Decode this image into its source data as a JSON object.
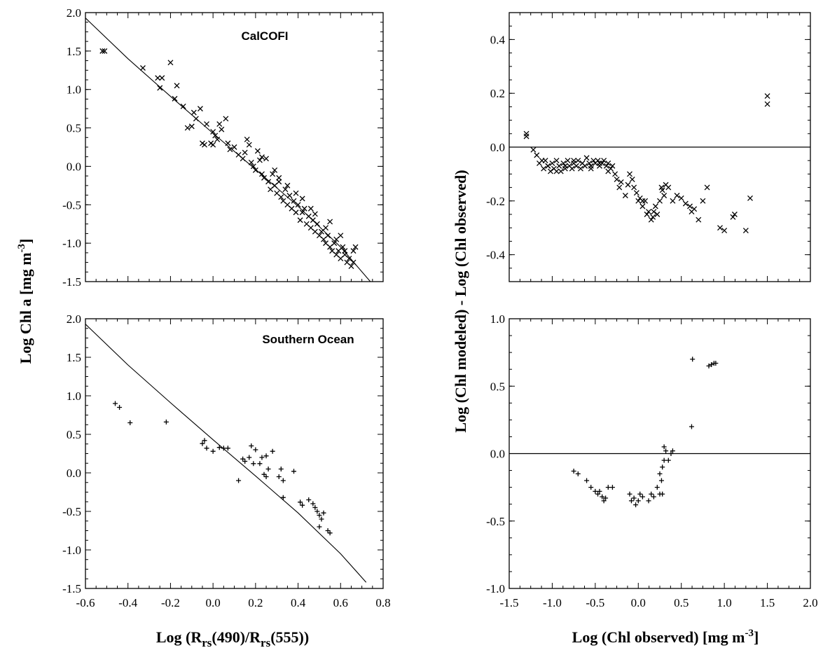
{
  "figure": {
    "left_ylabel": "Log Chl a  [mg m",
    "left_ylabel_sup": "-3",
    "left_ylabel_end": "]",
    "right_ylabel": "Log (Chl modeled) - Log (Chl observed)",
    "left_xlabel_pre": "Log (R",
    "left_xlabel_sub1": "rs",
    "left_xlabel_mid": "(490)/R",
    "left_xlabel_sub2": "rs",
    "left_xlabel_end": "(555))",
    "right_xlabel_pre": "Log (Chl observed) [mg m",
    "right_xlabel_sup": "-3",
    "right_xlabel_end": "]"
  },
  "chart_data": [
    {
      "id": "tl",
      "type": "scatter",
      "title": "CalCOFI",
      "marker": "x",
      "xlim": [
        -0.6,
        0.8
      ],
      "ylim": [
        -1.5,
        2.0
      ],
      "xticks": [
        -0.6,
        -0.4,
        -0.2,
        0.0,
        0.2,
        0.4,
        0.6,
        0.8
      ],
      "yticks": [
        -1.5,
        -1.0,
        -0.5,
        0.0,
        0.5,
        1.0,
        1.5,
        2.0
      ],
      "ytick_labels": [
        "-1.5",
        "-1.0",
        "-0.5",
        "0.0",
        "0.5",
        "1.0",
        "1.5",
        "2.0"
      ],
      "xtick_labels": [],
      "curve": {
        "x": [
          -0.6,
          -0.4,
          -0.2,
          0.0,
          0.2,
          0.4,
          0.6,
          0.74
        ],
        "y": [
          1.93,
          1.4,
          0.91,
          0.43,
          -0.04,
          -0.52,
          -1.05,
          -1.5
        ]
      },
      "points": {
        "x": [
          -0.52,
          -0.51,
          -0.33,
          -0.26,
          -0.25,
          -0.24,
          -0.2,
          -0.18,
          -0.17,
          -0.14,
          -0.12,
          -0.1,
          -0.09,
          -0.08,
          -0.06,
          -0.05,
          -0.04,
          -0.03,
          -0.01,
          0.0,
          0.0,
          0.01,
          0.02,
          0.03,
          0.04,
          0.06,
          0.07,
          0.08,
          0.1,
          0.12,
          0.14,
          0.15,
          0.16,
          0.17,
          0.18,
          0.19,
          0.2,
          0.21,
          0.22,
          0.23,
          0.24,
          0.25,
          0.26,
          0.27,
          0.28,
          0.29,
          0.3,
          0.31,
          0.32,
          0.33,
          0.34,
          0.35,
          0.36,
          0.37,
          0.38,
          0.39,
          0.4,
          0.41,
          0.42,
          0.43,
          0.44,
          0.45,
          0.46,
          0.47,
          0.48,
          0.49,
          0.5,
          0.51,
          0.52,
          0.53,
          0.54,
          0.55,
          0.56,
          0.57,
          0.58,
          0.59,
          0.6,
          0.61,
          0.62,
          0.63,
          0.64,
          0.65,
          0.66,
          0.67,
          0.29,
          0.35,
          0.42,
          0.48,
          0.53,
          0.58,
          0.62,
          0.66,
          0.23,
          0.31,
          0.39,
          0.46,
          0.55,
          0.6
        ],
        "y": [
          1.5,
          1.5,
          1.28,
          1.15,
          1.02,
          1.15,
          1.35,
          0.88,
          1.05,
          0.78,
          0.5,
          0.52,
          0.7,
          0.62,
          0.75,
          0.3,
          0.28,
          0.55,
          0.3,
          0.45,
          0.28,
          0.4,
          0.35,
          0.55,
          0.48,
          0.62,
          0.3,
          0.22,
          0.25,
          0.15,
          0.1,
          0.18,
          0.35,
          0.28,
          0.05,
          0.0,
          -0.05,
          0.2,
          0.08,
          -0.1,
          -0.15,
          0.1,
          -0.2,
          -0.3,
          -0.1,
          -0.25,
          -0.35,
          -0.2,
          -0.4,
          -0.45,
          -0.3,
          -0.5,
          -0.38,
          -0.55,
          -0.45,
          -0.6,
          -0.5,
          -0.7,
          -0.6,
          -0.55,
          -0.75,
          -0.65,
          -0.8,
          -0.7,
          -0.85,
          -0.75,
          -0.9,
          -0.85,
          -0.95,
          -1.0,
          -0.9,
          -1.05,
          -1.1,
          -1.0,
          -1.15,
          -1.1,
          -1.2,
          -1.05,
          -1.15,
          -1.25,
          -1.2,
          -1.3,
          -1.1,
          -1.05,
          -0.05,
          -0.25,
          -0.42,
          -0.62,
          -0.8,
          -0.95,
          -1.1,
          -1.25,
          0.12,
          -0.15,
          -0.35,
          -0.55,
          -0.72,
          -0.9
        ]
      }
    },
    {
      "id": "bl",
      "type": "scatter",
      "title": "Southern Ocean",
      "marker": "+",
      "xlim": [
        -0.6,
        0.8
      ],
      "ylim": [
        -1.5,
        2.0
      ],
      "xticks": [
        -0.6,
        -0.4,
        -0.2,
        0.0,
        0.2,
        0.4,
        0.6,
        0.8
      ],
      "yticks": [
        -1.5,
        -1.0,
        -0.5,
        0.0,
        0.5,
        1.0,
        1.5,
        2.0
      ],
      "xtick_labels": [
        "-0.6",
        "-0.4",
        "-0.2",
        "0.0",
        "0.2",
        "0.4",
        "0.6",
        "0.8"
      ],
      "ytick_labels": [
        "-1.5",
        "-1.0",
        "-0.5",
        "0.0",
        "0.5",
        "1.0",
        "1.5",
        "2.0"
      ],
      "curve": {
        "x": [
          -0.6,
          -0.4,
          -0.2,
          0.0,
          0.2,
          0.4,
          0.6,
          0.72
        ],
        "y": [
          1.93,
          1.4,
          0.91,
          0.43,
          -0.04,
          -0.52,
          -1.05,
          -1.42
        ]
      },
      "points": {
        "x": [
          -0.46,
          -0.44,
          -0.39,
          -0.22,
          -0.05,
          -0.04,
          -0.03,
          0.0,
          0.03,
          0.05,
          0.07,
          0.12,
          0.14,
          0.15,
          0.18,
          0.19,
          0.2,
          0.22,
          0.23,
          0.24,
          0.25,
          0.26,
          0.28,
          0.31,
          0.32,
          0.33,
          0.38,
          0.41,
          0.42,
          0.47,
          0.48,
          0.49,
          0.5,
          0.51,
          0.52,
          0.54,
          0.55,
          0.17,
          0.25,
          0.33,
          0.45,
          0.5
        ],
        "y": [
          0.9,
          0.85,
          0.65,
          0.66,
          0.38,
          0.42,
          0.32,
          0.28,
          0.33,
          0.32,
          0.32,
          -0.1,
          0.18,
          0.15,
          0.35,
          0.12,
          0.3,
          0.12,
          0.2,
          -0.02,
          -0.05,
          0.05,
          0.28,
          -0.05,
          0.05,
          -0.1,
          0.02,
          -0.38,
          -0.42,
          -0.4,
          -0.45,
          -0.5,
          -0.55,
          -0.6,
          -0.52,
          -0.75,
          -0.78,
          0.2,
          0.22,
          -0.32,
          -0.35,
          -0.7
        ]
      }
    },
    {
      "id": "tr",
      "type": "scatter",
      "marker": "x",
      "xlim": [
        -1.5,
        2.0
      ],
      "ylim": [
        -0.5,
        0.5
      ],
      "xticks": [
        -1.5,
        -1.0,
        -0.5,
        0.0,
        0.5,
        1.0,
        1.5,
        2.0
      ],
      "yticks": [
        -0.4,
        -0.2,
        0.0,
        0.2,
        0.4
      ],
      "ytick_labels": [
        "-0.4",
        "-0.2",
        "0.0",
        "0.2",
        "0.4"
      ],
      "xtick_labels": [],
      "hline": 0.0,
      "points": {
        "x": [
          -1.3,
          -1.3,
          -1.22,
          -1.18,
          -1.15,
          -1.12,
          -1.1,
          -1.08,
          -1.05,
          -1.02,
          -1.0,
          -0.98,
          -0.95,
          -0.92,
          -0.9,
          -0.87,
          -0.85,
          -0.82,
          -0.8,
          -0.77,
          -0.75,
          -0.72,
          -0.7,
          -0.67,
          -0.65,
          -0.62,
          -0.6,
          -0.57,
          -0.55,
          -0.52,
          -0.5,
          -0.47,
          -0.45,
          -0.42,
          -0.4,
          -0.37,
          -0.35,
          -0.32,
          -0.3,
          -0.27,
          -0.25,
          -0.22,
          -0.2,
          -0.15,
          -0.12,
          -0.1,
          -0.07,
          -0.05,
          -0.02,
          0.0,
          0.02,
          0.05,
          0.08,
          0.1,
          0.12,
          0.15,
          0.17,
          0.2,
          0.22,
          0.25,
          0.27,
          0.3,
          0.32,
          0.35,
          0.4,
          0.45,
          0.5,
          0.55,
          0.6,
          0.62,
          0.65,
          0.7,
          0.75,
          0.8,
          0.95,
          1.0,
          1.1,
          1.12,
          1.25,
          1.3,
          1.5,
          1.5,
          -1.05,
          -0.95,
          -0.85,
          -0.75,
          -0.65,
          -0.55,
          -0.45,
          -0.35,
          0.05,
          0.18,
          0.28
        ],
        "y": [
          0.05,
          0.04,
          -0.01,
          -0.03,
          -0.06,
          -0.05,
          -0.08,
          -0.05,
          -0.07,
          -0.09,
          -0.06,
          -0.08,
          -0.05,
          -0.07,
          -0.09,
          -0.06,
          -0.08,
          -0.05,
          -0.07,
          -0.08,
          -0.06,
          -0.07,
          -0.05,
          -0.08,
          -0.06,
          -0.07,
          -0.04,
          -0.06,
          -0.08,
          -0.05,
          -0.06,
          -0.05,
          -0.07,
          -0.06,
          -0.05,
          -0.07,
          -0.06,
          -0.08,
          -0.07,
          -0.1,
          -0.12,
          -0.15,
          -0.13,
          -0.18,
          -0.14,
          -0.1,
          -0.12,
          -0.15,
          -0.17,
          -0.2,
          -0.19,
          -0.22,
          -0.2,
          -0.25,
          -0.24,
          -0.27,
          -0.26,
          -0.22,
          -0.25,
          -0.2,
          -0.15,
          -0.18,
          -0.14,
          -0.15,
          -0.2,
          -0.18,
          -0.19,
          -0.21,
          -0.22,
          -0.24,
          -0.23,
          -0.27,
          -0.2,
          -0.15,
          -0.3,
          -0.31,
          -0.26,
          -0.25,
          -0.31,
          -0.19,
          0.19,
          0.16,
          -0.07,
          -0.09,
          -0.07,
          -0.05,
          -0.06,
          -0.07,
          -0.06,
          -0.09,
          -0.2,
          -0.24,
          -0.16
        ]
      }
    },
    {
      "id": "br",
      "type": "scatter",
      "marker": "+",
      "xlim": [
        -1.5,
        2.0
      ],
      "ylim": [
        -1.0,
        1.0
      ],
      "xticks": [
        -1.5,
        -1.0,
        -0.5,
        0.0,
        0.5,
        1.0,
        1.5,
        2.0
      ],
      "yticks": [
        -1.0,
        -0.5,
        0.0,
        0.5,
        1.0
      ],
      "xtick_labels": [
        "-1.5",
        "-1.0",
        "-0.5",
        "0.0",
        "0.5",
        "1.0",
        "1.5",
        "2.0"
      ],
      "ytick_labels": [
        "-1.0",
        "-0.5",
        "0.0",
        "0.5",
        "1.0"
      ],
      "hline": 0.0,
      "points": {
        "x": [
          -0.75,
          -0.7,
          -0.6,
          -0.55,
          -0.5,
          -0.47,
          -0.45,
          -0.42,
          -0.4,
          -0.38,
          -0.35,
          -0.3,
          -0.1,
          -0.08,
          -0.05,
          -0.03,
          0.0,
          0.02,
          0.05,
          0.12,
          0.15,
          0.18,
          0.22,
          0.25,
          0.27,
          0.28,
          0.3,
          0.32,
          0.35,
          0.38,
          0.4,
          0.62,
          0.63,
          0.82,
          0.85,
          0.88,
          0.9,
          0.25,
          0.28,
          0.3
        ],
        "y": [
          -0.13,
          -0.15,
          -0.2,
          -0.25,
          -0.28,
          -0.3,
          -0.28,
          -0.32,
          -0.35,
          -0.33,
          -0.25,
          -0.25,
          -0.3,
          -0.35,
          -0.33,
          -0.38,
          -0.35,
          -0.3,
          -0.32,
          -0.35,
          -0.3,
          -0.32,
          -0.25,
          -0.3,
          -0.2,
          -0.1,
          -0.05,
          0.02,
          -0.05,
          0.0,
          0.02,
          0.2,
          0.7,
          0.65,
          0.66,
          0.67,
          0.67,
          -0.15,
          -0.3,
          0.05
        ]
      }
    }
  ]
}
